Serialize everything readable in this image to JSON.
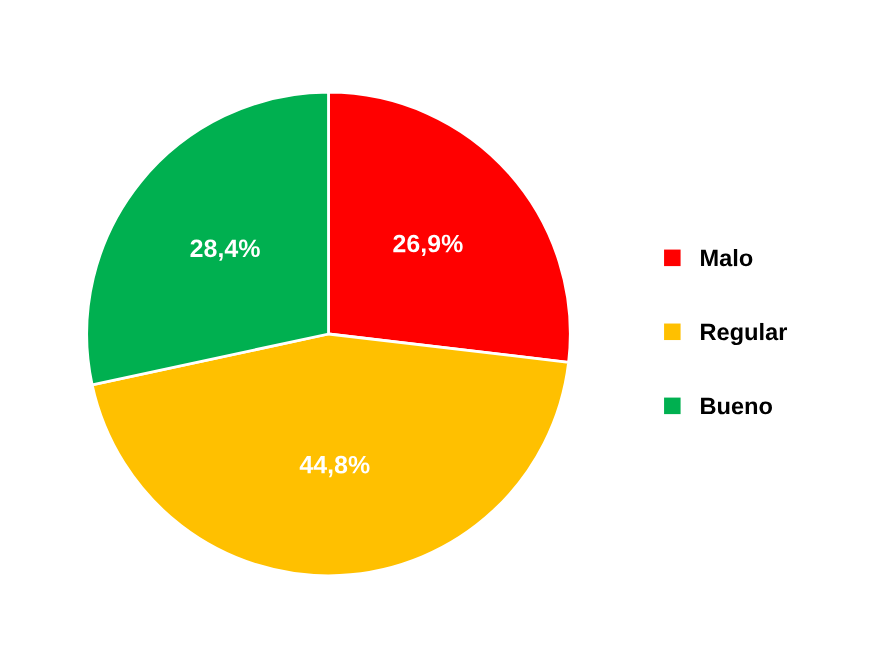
{
  "chart_data": {
    "type": "pie",
    "categories": [
      "Malo",
      "Regular",
      "Bueno"
    ],
    "values": [
      26.9,
      44.8,
      28.4
    ],
    "value_labels": [
      "26,9%",
      "44,8%",
      "28,4%"
    ],
    "colors": [
      "#ff0000",
      "#ffc000",
      "#00b050"
    ],
    "legend": "right"
  }
}
